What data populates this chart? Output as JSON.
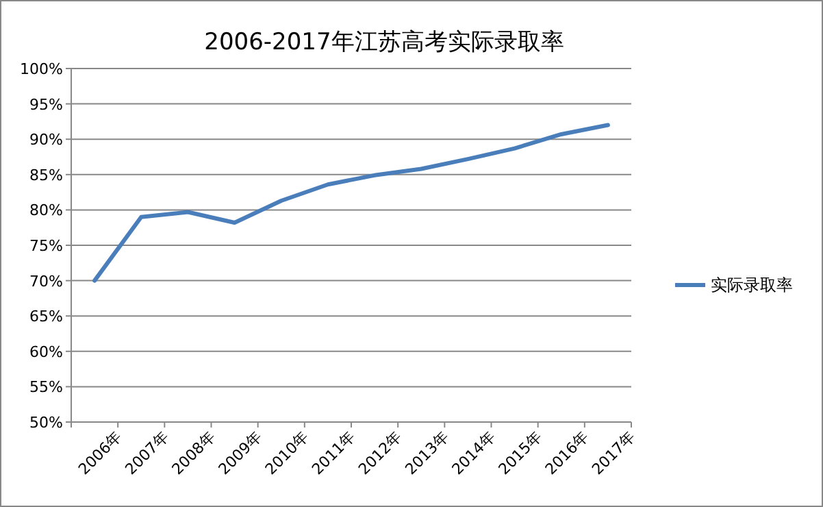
{
  "chart_data": {
    "type": "line",
    "title": "2006-2017年江苏高考实际录取率",
    "categories": [
      "2006年",
      "2007年",
      "2008年",
      "2009年",
      "2010年",
      "2011年",
      "2012年",
      "2013年",
      "2014年",
      "2015年",
      "2016年",
      "2017年"
    ],
    "series": [
      {
        "name": "实际录取率",
        "color": "#4a7ebb",
        "values": [
          70.0,
          79.0,
          79.7,
          78.2,
          81.3,
          83.6,
          84.9,
          85.8,
          87.2,
          88.7,
          90.7,
          92.0
        ]
      }
    ],
    "ylim": [
      50,
      100
    ],
    "yticks": [
      {
        "value": 50,
        "label": "50%"
      },
      {
        "value": 55,
        "label": "55%"
      },
      {
        "value": 60,
        "label": "60%"
      },
      {
        "value": 65,
        "label": "65%"
      },
      {
        "value": 70,
        "label": "70%"
      },
      {
        "value": 75,
        "label": "75%"
      },
      {
        "value": 80,
        "label": "80%"
      },
      {
        "value": 85,
        "label": "85%"
      },
      {
        "value": 90,
        "label": "90%"
      },
      {
        "value": 95,
        "label": "95%"
      },
      {
        "value": 100,
        "label": "100%"
      }
    ],
    "grid": "y",
    "legend": "right",
    "marker": "none",
    "line_style": "solid"
  }
}
